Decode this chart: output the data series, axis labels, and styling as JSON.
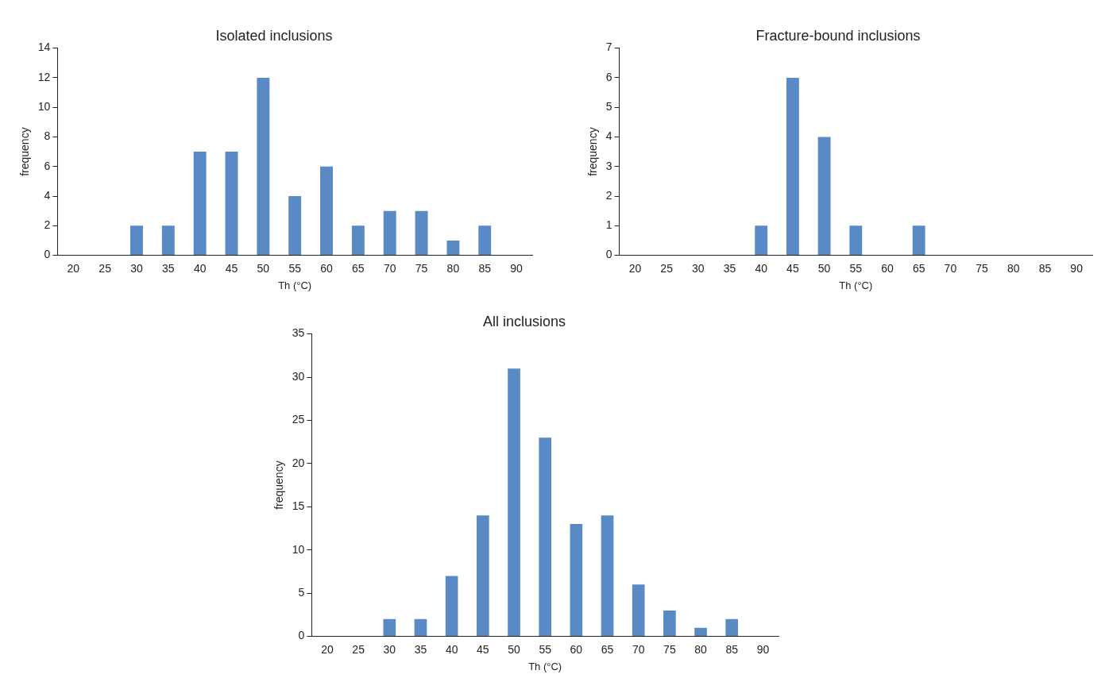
{
  "chart_data": [
    {
      "type": "bar",
      "title": "Isolated inclusions",
      "xlabel": "Th (°C)",
      "ylabel": "frequency",
      "categories": [
        "20",
        "25",
        "30",
        "35",
        "40",
        "45",
        "50",
        "55",
        "60",
        "65",
        "70",
        "75",
        "80",
        "85",
        "90"
      ],
      "values": [
        0,
        0,
        2,
        2,
        7,
        7,
        12,
        4,
        6,
        2,
        3,
        3,
        1,
        2,
        null
      ],
      "color": "#5a8ac6",
      "ylim": [
        0,
        14
      ],
      "yticks": [
        0,
        2,
        4,
        6,
        8,
        10,
        12,
        14
      ],
      "grid": false,
      "legend": false
    },
    {
      "type": "bar",
      "title": "Fracture-bound inclusions",
      "xlabel": "Th (°C)",
      "ylabel": "frequency",
      "categories": [
        "20",
        "25",
        "30",
        "35",
        "40",
        "45",
        "50",
        "55",
        "60",
        "65",
        "70",
        "75",
        "80",
        "85",
        "90"
      ],
      "values": [
        0,
        0,
        0,
        0,
        1,
        6,
        4,
        1,
        0,
        1,
        null,
        null,
        null,
        null,
        null
      ],
      "color": "#5a8ac6",
      "ylim": [
        0,
        7
      ],
      "yticks": [
        0,
        1,
        2,
        3,
        4,
        5,
        6,
        7
      ],
      "grid": false,
      "legend": false
    },
    {
      "type": "bar",
      "title": "All inclusions",
      "xlabel": "Th (°C)",
      "ylabel": "frequency",
      "categories": [
        "20",
        "25",
        "30",
        "35",
        "40",
        "45",
        "50",
        "55",
        "60",
        "65",
        "70",
        "75",
        "80",
        "85",
        "90"
      ],
      "values": [
        null,
        null,
        2,
        2,
        7,
        14,
        31,
        23,
        13,
        14,
        6,
        3,
        1,
        2,
        null
      ],
      "color": "#5a8ac6",
      "ylim": [
        0,
        35
      ],
      "yticks": [
        0,
        5,
        10,
        15,
        20,
        25,
        30,
        35
      ],
      "grid": false,
      "legend": false
    }
  ]
}
